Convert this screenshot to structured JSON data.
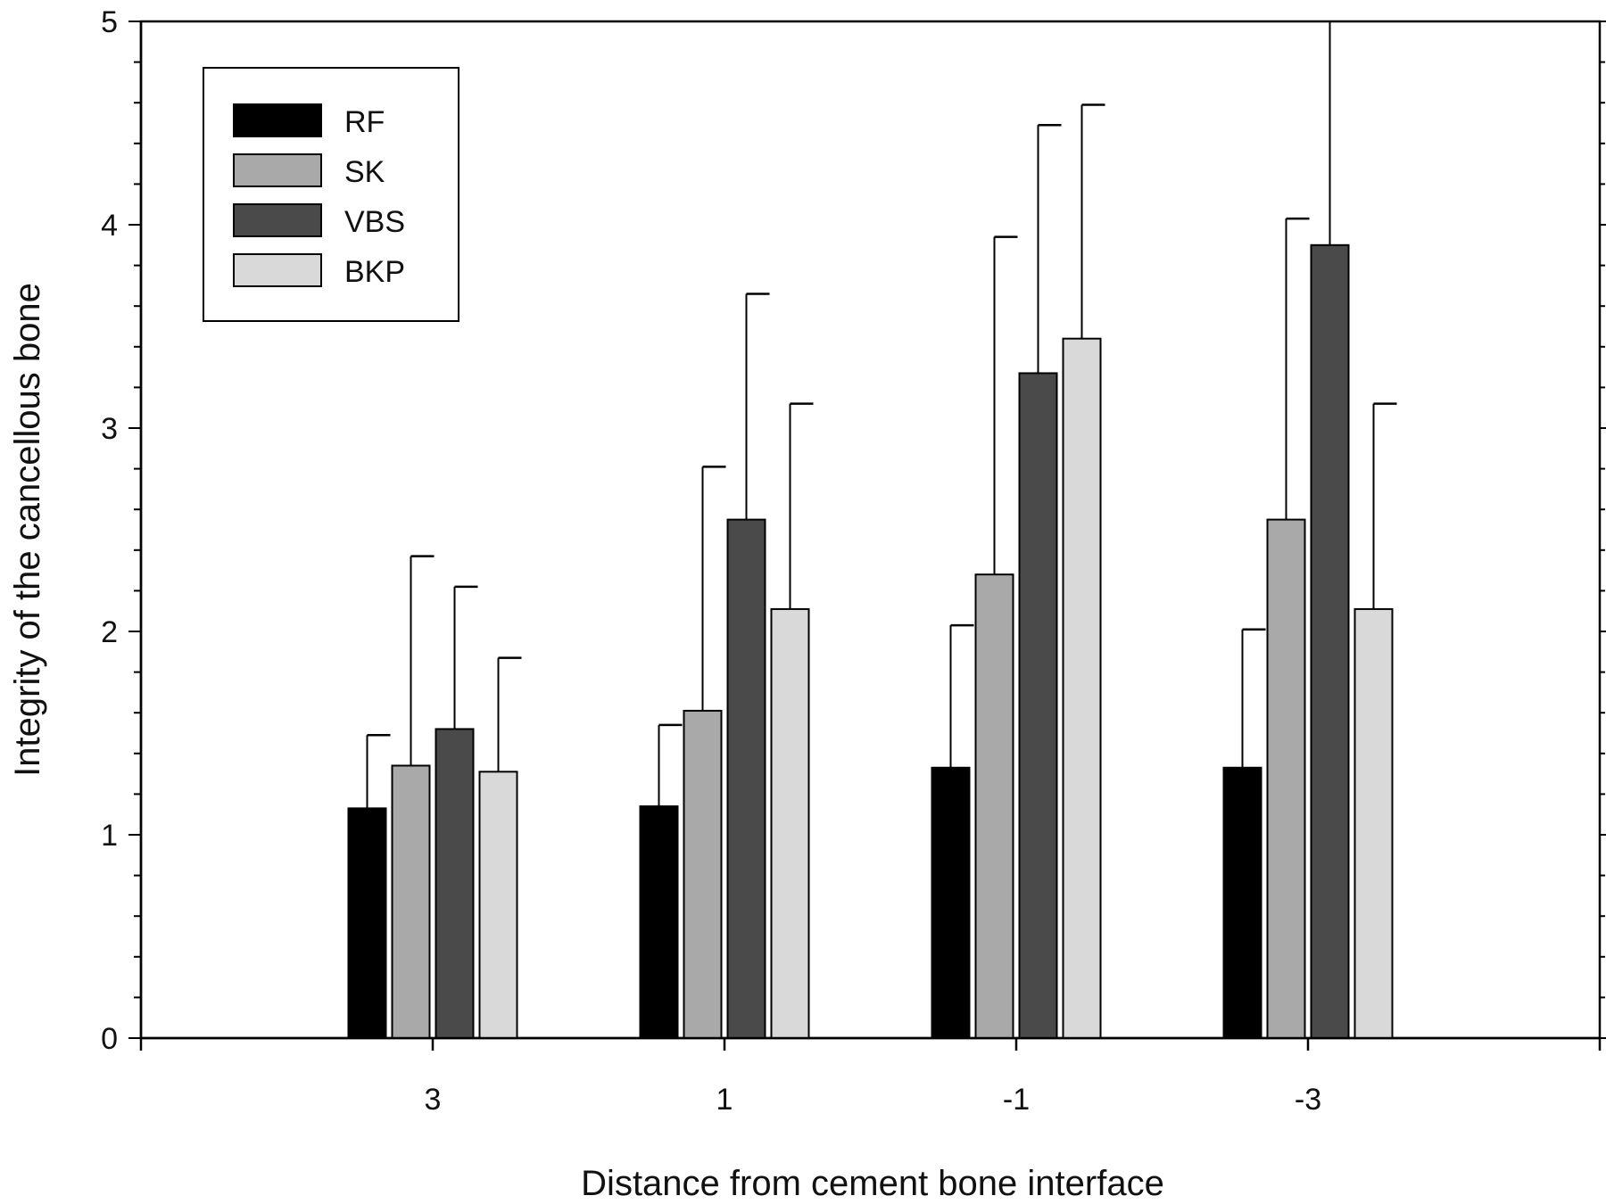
{
  "chart_data": {
    "type": "bar",
    "title": "",
    "xlabel": "Distance from cement bone interface",
    "ylabel": "Integrity of the cancellous bone",
    "categories": [
      "3",
      "1",
      "-1",
      "-3"
    ],
    "ylim": [
      0,
      5
    ],
    "yticks": [
      "0",
      "1",
      "2",
      "3",
      "4",
      "5"
    ],
    "grid": false,
    "legend_position": "top-left",
    "series": [
      {
        "name": "RF",
        "color": "#000000",
        "values": [
          1.13,
          1.14,
          1.33,
          1.33
        ],
        "errors": [
          0.36,
          0.4,
          0.7,
          0.68
        ]
      },
      {
        "name": "SK",
        "color": "#a9a9a9",
        "values": [
          1.34,
          1.61,
          2.28,
          2.55
        ],
        "errors": [
          1.03,
          1.2,
          1.66,
          1.48
        ]
      },
      {
        "name": "VBS",
        "color": "#4a4a4a",
        "values": [
          1.52,
          2.55,
          3.27,
          3.9
        ],
        "errors": [
          0.7,
          1.11,
          1.22,
          1.2
        ]
      },
      {
        "name": "BKP",
        "color": "#d9d9d9",
        "values": [
          1.31,
          2.11,
          3.44,
          2.11
        ],
        "errors": [
          0.56,
          1.01,
          1.15,
          1.01
        ]
      }
    ]
  }
}
